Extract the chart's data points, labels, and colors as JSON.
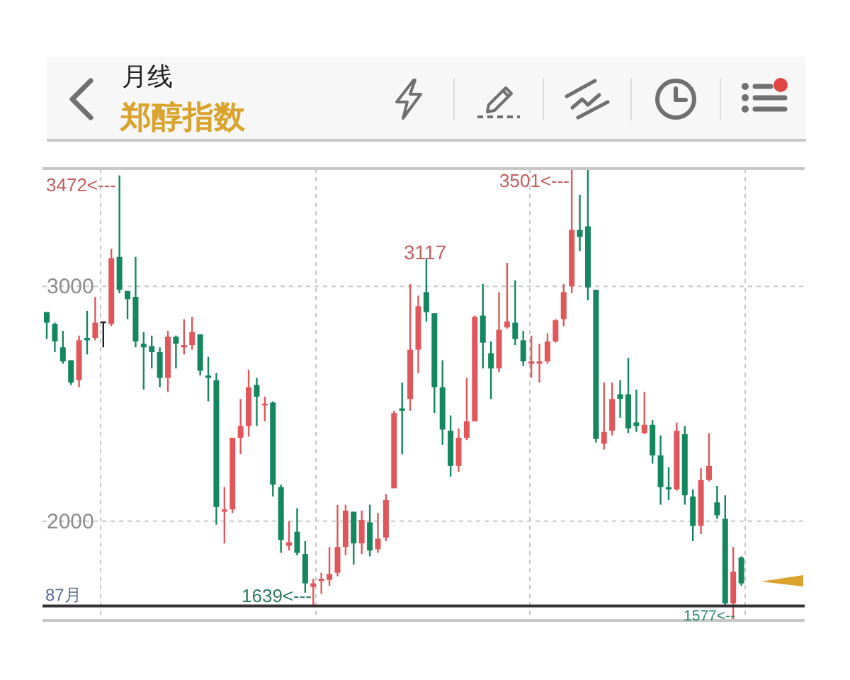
{
  "chart_data": {
    "type": "candlestick",
    "title": "月线",
    "subtitle": "郑醇指数",
    "categories": [
      null,
      null,
      null,
      null,
      null,
      null,
      null,
      null,
      null,
      null,
      null,
      null,
      null,
      null,
      null,
      null,
      null,
      null,
      null,
      null,
      null,
      null,
      null,
      null,
      null,
      null,
      null,
      null,
      null,
      null,
      null,
      null,
      null,
      null,
      null,
      null,
      null,
      null,
      null,
      null,
      null,
      null,
      null,
      null,
      null,
      null,
      null,
      null,
      null,
      null,
      null,
      null,
      null,
      null,
      null,
      null,
      null,
      null,
      null,
      null,
      null,
      null,
      null,
      null,
      null,
      null,
      null,
      null,
      null,
      null,
      null,
      null,
      null,
      null,
      null,
      null,
      null,
      null,
      null,
      null,
      null,
      null,
      null,
      null,
      null,
      null,
      null
    ],
    "ohlc": [
      [
        2890,
        2890,
        2775,
        2845
      ],
      [
        2840,
        2845,
        2720,
        2765
      ],
      [
        2740,
        2810,
        2670,
        2680
      ],
      [
        2685,
        2685,
        2580,
        2590
      ],
      [
        2600,
        2790,
        2570,
        2770
      ],
      [
        2780,
        2895,
        2710,
        2770
      ],
      [
        2780,
        2955,
        2770,
        2845
      ],
      [
        2850,
        2850,
        2740,
        2850
      ],
      [
        2840,
        3160,
        2830,
        3120
      ],
      [
        3125,
        3472,
        2970,
        2985
      ],
      [
        2980,
        2980,
        2860,
        2945
      ],
      [
        2955,
        3125,
        2740,
        2765
      ],
      [
        2755,
        2805,
        2560,
        2740
      ],
      [
        2745,
        2790,
        2650,
        2720
      ],
      [
        2720,
        2740,
        2570,
        2610
      ],
      [
        2610,
        2810,
        2550,
        2785
      ],
      [
        2785,
        2790,
        2650,
        2755
      ],
      [
        2740,
        2860,
        2710,
        2750
      ],
      [
        2750,
        2870,
        2730,
        2805
      ],
      [
        2795,
        2795,
        2620,
        2640
      ],
      [
        2620,
        2700,
        2510,
        2610
      ],
      [
        2600,
        2630,
        1985,
        2060
      ],
      [
        2040,
        2145,
        1905,
        2050
      ],
      [
        2050,
        2355,
        2035,
        2355
      ],
      [
        2355,
        2520,
        2285,
        2405
      ],
      [
        2405,
        2645,
        2360,
        2570
      ],
      [
        2580,
        2610,
        2405,
        2530
      ],
      [
        2495,
        2530,
        2425,
        2500
      ],
      [
        2505,
        2510,
        2105,
        2155
      ],
      [
        2145,
        2155,
        1865,
        1920
      ],
      [
        1895,
        2000,
        1875,
        1910
      ],
      [
        1955,
        2055,
        1855,
        1865
      ],
      [
        1860,
        1915,
        1695,
        1735
      ],
      [
        1720,
        1755,
        1639,
        1735
      ],
      [
        1745,
        1780,
        1690,
        1755
      ],
      [
        1750,
        1890,
        1725,
        1775
      ],
      [
        1780,
        2070,
        1765,
        1890
      ],
      [
        1890,
        2070,
        1855,
        2045
      ],
      [
        2040,
        2040,
        1815,
        1905
      ],
      [
        1905,
        2045,
        1860,
        2005
      ],
      [
        1995,
        2070,
        1850,
        1875
      ],
      [
        1880,
        2035,
        1865,
        1925
      ],
      [
        1930,
        2115,
        1915,
        2090
      ],
      [
        2140,
        2470,
        2140,
        2460
      ],
      [
        2480,
        2590,
        2285,
        2470
      ],
      [
        2520,
        3010,
        2470,
        2730
      ],
      [
        2730,
        2960,
        2630,
        2915
      ],
      [
        2975,
        3117,
        2850,
        2890
      ],
      [
        2885,
        2885,
        2460,
        2570
      ],
      [
        2570,
        2685,
        2325,
        2390
      ],
      [
        2385,
        2450,
        2190,
        2235
      ],
      [
        2235,
        2395,
        2210,
        2355
      ],
      [
        2355,
        2610,
        2345,
        2425
      ],
      [
        2425,
        2875,
        2425,
        2870
      ],
      [
        2875,
        3010,
        2650,
        2760
      ],
      [
        2715,
        2765,
        2520,
        2650
      ],
      [
        2650,
        2975,
        2635,
        2815
      ],
      [
        2825,
        3100,
        2820,
        2850
      ],
      [
        2845,
        3025,
        2750,
        2775
      ],
      [
        2770,
        2810,
        2660,
        2680
      ],
      [
        2670,
        2790,
        2610,
        2680
      ],
      [
        2670,
        2755,
        2590,
        2680
      ],
      [
        2680,
        2800,
        2670,
        2765
      ],
      [
        2765,
        2860,
        2760,
        2855
      ],
      [
        2860,
        3010,
        2830,
        2975
      ],
      [
        3000,
        3501,
        2970,
        3240
      ],
      [
        3240,
        3390,
        3150,
        3210
      ],
      [
        3255,
        3495,
        2940,
        2995
      ],
      [
        2985,
        2985,
        2335,
        2350
      ],
      [
        2330,
        2590,
        2305,
        2380
      ],
      [
        2385,
        2590,
        2365,
        2520
      ],
      [
        2540,
        2600,
        2440,
        2520
      ],
      [
        2540,
        2695,
        2375,
        2395
      ],
      [
        2420,
        2560,
        2380,
        2405
      ],
      [
        2375,
        2550,
        2370,
        2410
      ],
      [
        2410,
        2430,
        2245,
        2280
      ],
      [
        2280,
        2365,
        2070,
        2145
      ],
      [
        2145,
        2230,
        2090,
        2135
      ],
      [
        2135,
        2420,
        2130,
        2385
      ],
      [
        2370,
        2405,
        2070,
        2110
      ],
      [
        2105,
        2135,
        1915,
        1980
      ],
      [
        1980,
        2225,
        1945,
        2175
      ],
      [
        2175,
        2375,
        2170,
        2235
      ],
      [
        2080,
        2150,
        2010,
        2025
      ],
      [
        2010,
        2110,
        1640,
        1650
      ],
      [
        1650,
        1890,
        1577,
        1785
      ],
      [
        1845,
        1850,
        1725,
        1735
      ]
    ],
    "colors": [
      "#14875e",
      "#14875e",
      "#14875e",
      "#14875e",
      "#e0575b",
      "#14875e",
      "#e0575b",
      "#222222",
      "#e0575b",
      "#14875e",
      "#14875e",
      "#14875e",
      "#14875e",
      "#14875e",
      "#14875e",
      "#e0575b",
      "#14875e",
      "#e0575b",
      "#e0575b",
      "#14875e",
      "#14875e",
      "#14875e",
      "#e0575b",
      "#e0575b",
      "#e0575b",
      "#e0575b",
      "#14875e",
      "#e0575b",
      "#14875e",
      "#14875e",
      "#e0575b",
      "#14875e",
      "#14875e",
      "#e0575b",
      "#e0575b",
      "#e0575b",
      "#e0575b",
      "#e0575b",
      "#14875e",
      "#e0575b",
      "#14875e",
      "#e0575b",
      "#e0575b",
      "#e0575b",
      "#14875e",
      "#e0575b",
      "#e0575b",
      "#14875e",
      "#14875e",
      "#14875e",
      "#14875e",
      "#e0575b",
      "#e0575b",
      "#e0575b",
      "#14875e",
      "#14875e",
      "#e0575b",
      "#e0575b",
      "#14875e",
      "#14875e",
      "#e0575b",
      "#e0575b",
      "#e0575b",
      "#e0575b",
      "#e0575b",
      "#e0575b",
      "#14875e",
      "#14875e",
      "#14875e",
      "#e0575b",
      "#e0575b",
      "#14875e",
      "#14875e",
      "#14875e",
      "#e0575b",
      "#14875e",
      "#14875e",
      "#14875e",
      "#e0575b",
      "#14875e",
      "#14875e",
      "#e0575b",
      "#e0575b",
      "#14875e",
      "#14875e",
      "#e0575b",
      "#14875e"
    ],
    "ylim": [
      1577,
      3501
    ],
    "yticks": [
      2000,
      3000
    ],
    "grid": true,
    "tick_labels": "y",
    "ref_lines": [
      {
        "axis": "y",
        "value": 1639,
        "color": "#333333"
      }
    ],
    "annotations": [
      "87月",
      "3472<---",
      "3501<---",
      "3117",
      "1639<---",
      "1577<--"
    ]
  }
}
